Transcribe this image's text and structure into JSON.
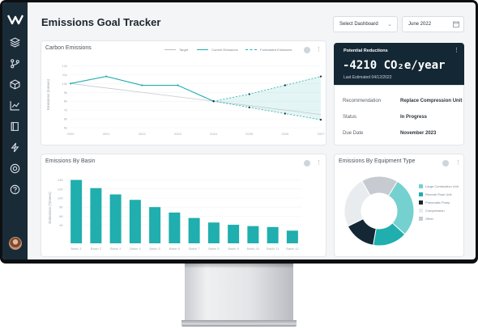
{
  "header": {
    "title": "Emissions Goal Tracker",
    "dashboard_select": "Select Dashboard",
    "date_select": "June 2022"
  },
  "carbon_card": {
    "title": "Carbon Emissions",
    "legend": [
      "Target",
      "Current Emissions",
      "Forecasted Emissions"
    ],
    "ylabel": "Emissions (tonnes)"
  },
  "kpi": {
    "label": "Potential Reductions",
    "value": "-4210 CO₂e/year",
    "sub": "Last Estimated 04/12/2022"
  },
  "details": {
    "recommendation_label": "Recommendation",
    "recommendation_value": "Replace Compression Unit",
    "status_label": "Status",
    "status_value": "In Progress",
    "due_label": "Due Date",
    "due_value": "November 2023"
  },
  "basin_card": {
    "title": "Emissions By Basin",
    "ylabel": "Emissions (Tonnes)"
  },
  "equipment_card": {
    "title": "Emissions By Equipment Type",
    "legend": [
      "Large Combustion Unit",
      "Remote Flare Unit",
      "Pneumatic Pump",
      "Compression",
      "Other"
    ]
  },
  "colors": {
    "teal": "#20aeae",
    "navy": "#142734",
    "sidebar": "#1a2b38"
  },
  "chart_data": [
    {
      "type": "line",
      "title": "Carbon Emissions",
      "ylabel": "Emissions (tonnes)",
      "x": [
        "2020",
        "2021",
        "2022",
        "2023",
        "2024",
        "2025",
        "2026",
        "2027"
      ],
      "yticks": [
        "12k",
        "11k",
        "10k",
        "9k",
        "8k",
        "7k",
        "6k",
        "5k"
      ],
      "ylim": [
        5,
        12.5
      ],
      "series": [
        {
          "name": "Target",
          "values": [
            10.0,
            9.5,
            9.0,
            8.5,
            8.0,
            7.5,
            7.0,
            6.5
          ]
        },
        {
          "name": "Current Emissions",
          "values": [
            10.0,
            10.8,
            9.8,
            9.8,
            8.0,
            null,
            null,
            null
          ]
        },
        {
          "name": "Forecasted Emissions",
          "values": [
            null,
            null,
            null,
            null,
            8.0,
            8.8,
            9.8,
            10.8
          ]
        },
        {
          "name": "Forecasted Emissions",
          "values": [
            null,
            null,
            null,
            null,
            8.0,
            7.3,
            6.6,
            5.9
          ]
        }
      ]
    },
    {
      "type": "bar",
      "title": "Emissions By Basin",
      "ylabel": "Emissions (Tonnes)",
      "categories": [
        "Basin 1",
        "Basin 2",
        "Basin 3",
        "Basin 4",
        "Basin 5",
        "Basin 6",
        "Basin 7",
        "Basin 8",
        "Basin 9",
        "Basin 10",
        "Basin 11",
        "Basin 12"
      ],
      "values": [
        14,
        12.2,
        10.8,
        9.6,
        8.0,
        6.8,
        5.6,
        4.6,
        4.1,
        3.8,
        3.6,
        2.8
      ],
      "yticks": [
        "14K",
        "12K",
        "10K",
        "8K",
        "6K",
        "4K"
      ],
      "ylim": [
        0,
        15
      ]
    },
    {
      "type": "pie",
      "title": "Emissions By Equipment Type",
      "categories": [
        "Large Combustion Unit",
        "Remote Flare Unit",
        "Pneumatic Pump",
        "Compression",
        "Other"
      ],
      "values": [
        28,
        16,
        15,
        24,
        17
      ],
      "colors": [
        "#74d1d0",
        "#20aeae",
        "#142734",
        "#e9ecef",
        "#c5cbd1"
      ]
    }
  ]
}
